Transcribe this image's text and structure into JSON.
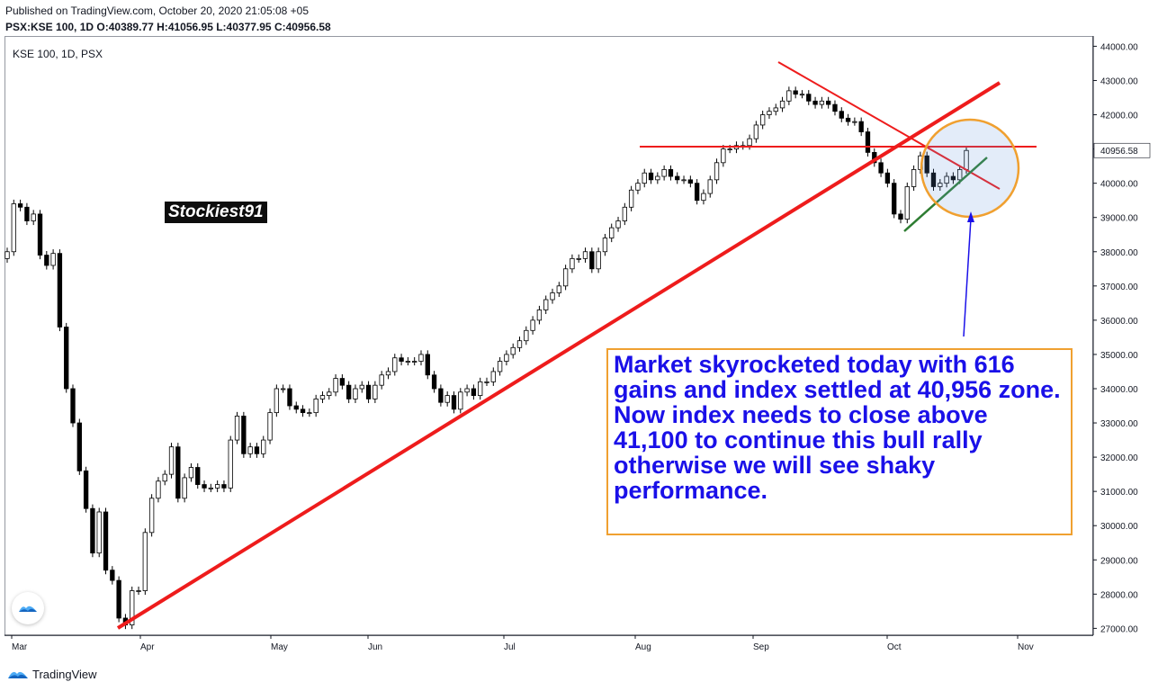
{
  "header": {
    "published": "Published on TradingView.com, October 20, 2020 21:05:08 +05",
    "symbol": "PSX:KSE 100, 1D",
    "open_label": "O:",
    "open": "40389.77",
    "high_label": "H:",
    "high": "41056.95",
    "low_label": "L:",
    "low": "40377.95",
    "close_label": "C:",
    "close": "40956.58"
  },
  "chart_label": "KSE 100, 1D, PSX",
  "watermark": "Stockiest91",
  "note": "Market skyrocketed today with 616 gains and index settled at 40,956 zone. Now index needs to close above 41,100 to continue this bull rally otherwise we will see shaky performance.",
  "footer": {
    "brand": "TradingView"
  },
  "colors": {
    "up": "#ffffff",
    "down": "#000000",
    "trendline": "#ee1c1c",
    "note_text": "#1a10e8",
    "note_border": "#f0a030",
    "circle": "#f0a030"
  },
  "chart_data": {
    "type": "candlestick",
    "y_ticks": [
      27000,
      28000,
      29000,
      30000,
      31000,
      32000,
      33000,
      34000,
      35000,
      36000,
      37000,
      38000,
      39000,
      40000,
      41000,
      42000,
      43000,
      44000
    ],
    "y_tick_labels": [
      "27000.00",
      "28000.00",
      "29000.00",
      "30000.00",
      "31000.00",
      "32000.00",
      "33000.00",
      "34000.00",
      "35000.00",
      "36000.00",
      "37000.00",
      "38000.00",
      "39000.00",
      "40000.00",
      "41000.00",
      "42000.00",
      "43000.00",
      "44000.00"
    ],
    "ylim": [
      26800,
      44300
    ],
    "x_labels": [
      "Mar",
      "Apr",
      "May",
      "Jun",
      "Jul",
      "Aug",
      "Sep",
      "Oct",
      "Nov"
    ],
    "last_price_label": "40956.58",
    "last_price": 40956.58,
    "closes": [
      38000,
      39400,
      39300,
      38900,
      39100,
      37900,
      37600,
      37950,
      35800,
      34000,
      33000,
      31600,
      30500,
      29200,
      30400,
      28700,
      28400,
      27300,
      27100,
      28100,
      28100,
      29800,
      30800,
      31300,
      31500,
      32300,
      30800,
      31400,
      31700,
      31200,
      31100,
      31100,
      31200,
      31100,
      32500,
      33200,
      32100,
      32300,
      32100,
      32500,
      33300,
      34000,
      34000,
      33500,
      33400,
      33300,
      33300,
      33700,
      33800,
      33900,
      34300,
      34100,
      33700,
      34000,
      34100,
      33700,
      34100,
      34400,
      34500,
      34900,
      34800,
      34800,
      34800,
      35000,
      34400,
      34000,
      33600,
      33800,
      33400,
      33900,
      34000,
      33800,
      34200,
      34200,
      34500,
      34800,
      35000,
      35200,
      35400,
      35700,
      36000,
      36300,
      36600,
      36800,
      37000,
      37500,
      37800,
      37800,
      38000,
      37500,
      38000,
      38400,
      38700,
      38900,
      39300,
      39800,
      40000,
      40300,
      40100,
      40200,
      40400,
      40200,
      40100,
      40100,
      40000,
      39500,
      39700,
      40100,
      40600,
      41000,
      41000,
      41100,
      41100,
      41300,
      41700,
      42000,
      42100,
      42200,
      42400,
      42700,
      42600,
      42600,
      42400,
      42300,
      42400,
      42300,
      42100,
      41900,
      41800,
      41800,
      41500,
      40900,
      40600,
      40300,
      40000,
      39100,
      38950,
      39900,
      40400,
      40800,
      40300,
      39900,
      40000,
      40200,
      40100,
      40400,
      40957
    ]
  }
}
